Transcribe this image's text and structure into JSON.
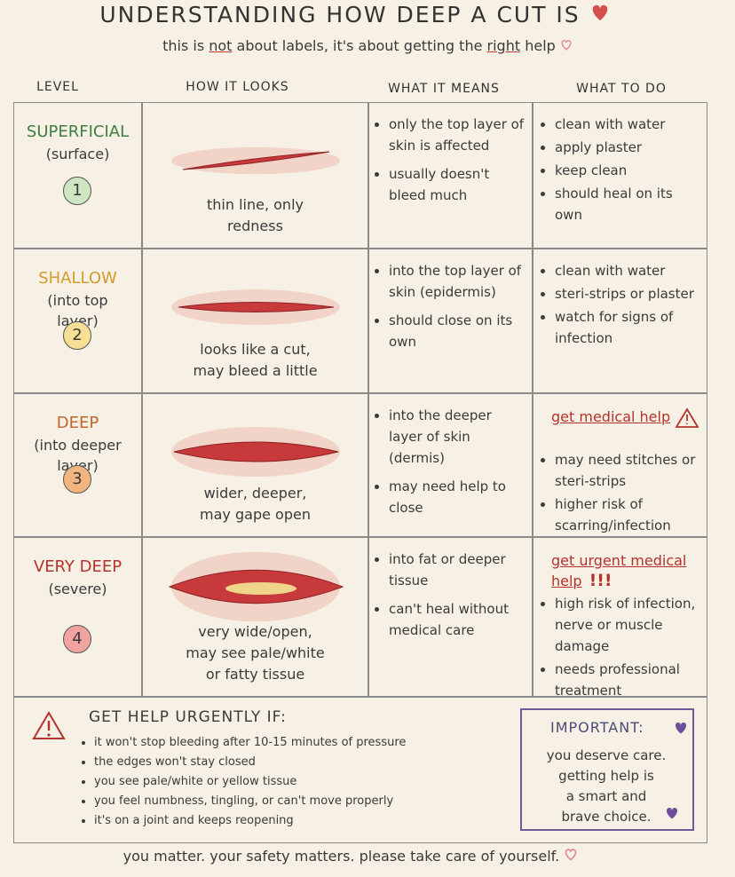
{
  "header": {
    "title": "UNDERSTANDING HOW DEEP A CUT IS",
    "subtitle": [
      "this is",
      "not",
      "about labels, it's about getting the",
      "right",
      "help"
    ]
  },
  "columns": [
    "LEVEL",
    "HOW IT LOOKS",
    "WHAT IT MEANS",
    "WHAT TO DO"
  ],
  "rows": [
    {
      "level": "SUPERFICIAL",
      "detail": "(surface)",
      "number": "1",
      "color": "#3f7d42",
      "circle_color": "#cfe6c2",
      "looks": [
        "thin line, only",
        "redness"
      ],
      "means": [
        "only the top layer of skin is affected",
        "usually doesn't bleed much"
      ],
      "todo": [
        "clean with water",
        "apply plaster",
        "keep clean",
        "should heal on its own"
      ]
    },
    {
      "level": "SHALLOW",
      "detail": "(into top layer)",
      "number": "2",
      "color": "#d39a2c",
      "circle_color": "#f7df93",
      "looks": [
        "looks like a cut,",
        "may bleed a little"
      ],
      "means": [
        "into the top layer of skin (epidermis)",
        "should close on its own"
      ],
      "todo": [
        "clean with water",
        "steri-strips or plaster",
        "watch for signs of infection"
      ]
    },
    {
      "level": "DEEP",
      "detail": "(into deeper layer)",
      "number": "3",
      "color": "#c2652c",
      "circle_color": "#f3b57f",
      "looks": [
        "wider, deeper,",
        "may gape open"
      ],
      "means": [
        "into the deeper layer of skin (dermis)",
        "may need help to close"
      ],
      "todo_heading": "get medical help",
      "todo": [
        "may need stitches or steri-strips",
        "higher risk of scarring/infection"
      ]
    },
    {
      "level": "VERY DEEP",
      "detail": "(severe)",
      "number": "4",
      "color": "#b5322c",
      "circle_color": "#f0a3a0",
      "looks": [
        "very wide/open,",
        "may see pale/white",
        "or fatty tissue"
      ],
      "means": [
        "into fat or deeper tissue",
        "can't heal without medical care"
      ],
      "todo_heading": "get urgent medical help",
      "todo_alert": "!!!",
      "todo": [
        "high risk of infection, nerve or muscle damage",
        "needs professional treatment"
      ]
    }
  ],
  "warning": {
    "title": "GET HELP URGENTLY IF:",
    "items": [
      "it won't stop bleeding after 10-15 minutes of pressure",
      "the edges won't stay closed",
      "you see pale/white or yellow tissue",
      "you feel numbness, tingling, or can't move properly",
      "it's on a joint and keeps reopening"
    ]
  },
  "important": {
    "title": "IMPORTANT:",
    "lines": [
      "you deserve care.",
      "getting help is",
      "a smart and",
      "brave choice."
    ]
  },
  "footer": "you matter. your safety matters. please take care of yourself."
}
